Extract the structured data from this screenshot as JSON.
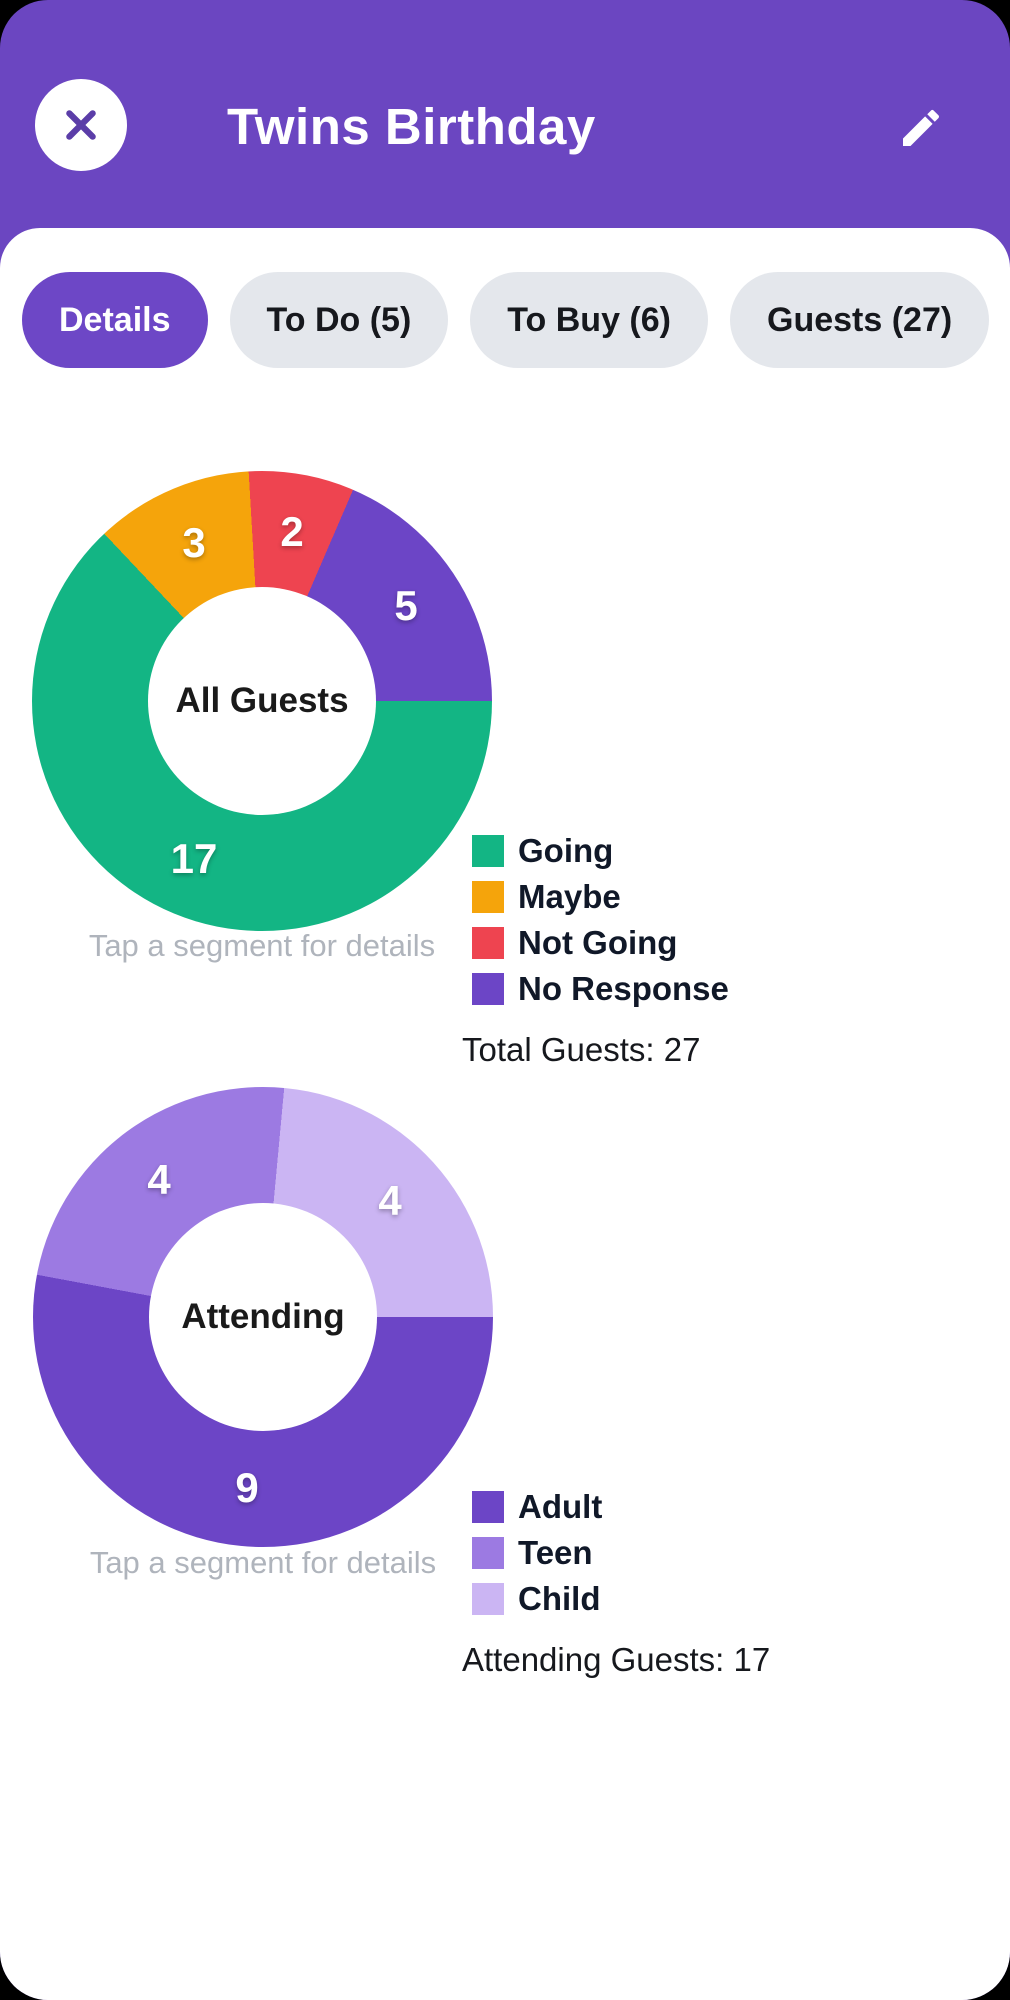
{
  "colors": {
    "header_purple": "#6B46C1",
    "active_chip_bg": "#6D47C6",
    "chip_bg": "#E4E7EC",
    "chip_text": "#16181D",
    "close_x": "#5B3DA8",
    "hint_gray": "#AFB4BC",
    "legend_text": "#101828"
  },
  "header": {
    "title": "Twins Birthday"
  },
  "tabs": [
    {
      "label": "Details",
      "active": true
    },
    {
      "label": "To Do (5)",
      "active": false
    },
    {
      "label": "To Buy (6)",
      "active": false
    },
    {
      "label": "Guests (27)",
      "active": false
    }
  ],
  "chart_data": [
    {
      "type": "pie",
      "variant": "donut",
      "center_label": "All Guests",
      "hint": "Tap a segment for details",
      "total_text": "Total Guests: 27",
      "total": 27,
      "start_angle_deg_from_top": 90,
      "segments": [
        {
          "label": "Going",
          "value": 17,
          "color": "#13B584"
        },
        {
          "label": "Maybe",
          "value": 3,
          "color": "#F5A40B"
        },
        {
          "label": "Not Going",
          "value": 2,
          "color": "#EE4450"
        },
        {
          "label": "No Response",
          "value": 5,
          "color": "#6C45C6"
        }
      ]
    },
    {
      "type": "pie",
      "variant": "donut",
      "center_label": "Attending",
      "hint": "Tap a segment for details",
      "total_text": "Attending Guests: 17",
      "total": 17,
      "start_angle_deg_from_top": 90,
      "segments": [
        {
          "label": "Adult",
          "value": 9,
          "color": "#6C45C6"
        },
        {
          "label": "Teen",
          "value": 4,
          "color": "#9C7AE2"
        },
        {
          "label": "Child",
          "value": 4,
          "color": "#CBB5F3"
        }
      ]
    }
  ]
}
